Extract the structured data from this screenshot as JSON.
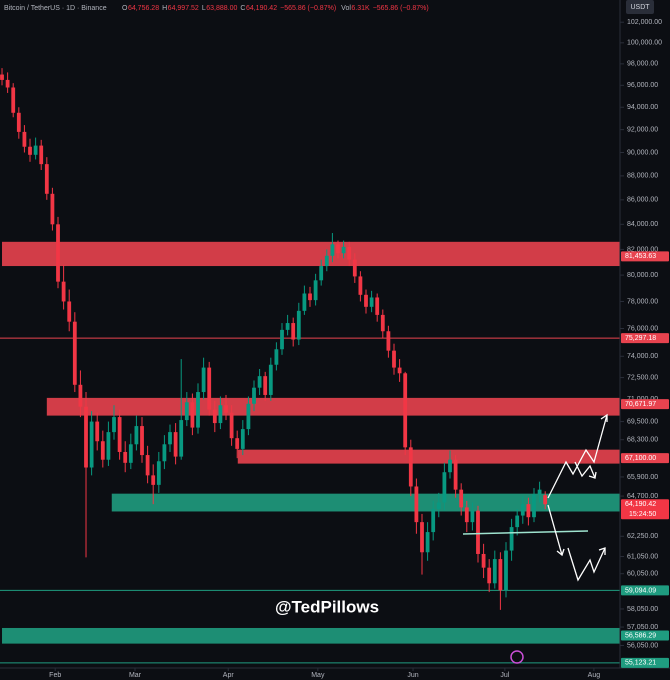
{
  "chart_data": {
    "type": "candlestick",
    "header": {
      "symbol": "Bitcoin / TetherUS · 1D · Binance",
      "ohlc": [
        "O",
        "64,756.28",
        "H",
        "64,997.52",
        "L",
        "63,888.00",
        "C",
        "64,190.42",
        "−565.86 (−0.87%)"
      ],
      "volume": [
        "Vol",
        "6.31K",
        "−565.86 (−0.87%)"
      ]
    },
    "currency": "USDT",
    "watermark": "@TedPillows",
    "log_scale": true,
    "grid": false,
    "up_color": "#089981",
    "down_color": "#f23645",
    "xlim": [
      -0.36,
      110.36
    ],
    "xticks": [
      {
        "value": 9.5,
        "label": "Feb"
      },
      {
        "value": 23.75,
        "label": "Mar"
      },
      {
        "value": 40.4,
        "label": "Apr"
      },
      {
        "value": 56.4,
        "label": "May"
      },
      {
        "value": 73.4,
        "label": "Jun"
      },
      {
        "value": 89.8,
        "label": "Jul"
      },
      {
        "value": 105.7,
        "label": "Aug"
      }
    ],
    "ylim": [
      54850,
      104200
    ],
    "yticks": [
      {
        "value": 102000,
        "label": "102,000.00"
      },
      {
        "value": 100000,
        "label": "100,000.00"
      },
      {
        "value": 98000,
        "label": "98,000.00"
      },
      {
        "value": 96000,
        "label": "96,000.00"
      },
      {
        "value": 94000,
        "label": "94,000.00"
      },
      {
        "value": 92000,
        "label": "92,000.00"
      },
      {
        "value": 90000,
        "label": "90,000.00"
      },
      {
        "value": 88000,
        "label": "88,000.00"
      },
      {
        "value": 86000,
        "label": "86,000.00"
      },
      {
        "value": 84000,
        "label": "84,000.00"
      },
      {
        "value": 82000,
        "label": "82,000.00"
      },
      {
        "value": 80000,
        "label": "80,000.00"
      },
      {
        "value": 78000,
        "label": "78,000.00"
      },
      {
        "value": 76000,
        "label": "76,000.00"
      },
      {
        "value": 74000,
        "label": "74,000.00"
      },
      {
        "value": 72500,
        "label": "72,500.00"
      },
      {
        "value": 71000,
        "label": "71,000.00"
      },
      {
        "value": 69500,
        "label": "69,500.00"
      },
      {
        "value": 68300,
        "label": "68,300.00"
      },
      {
        "value": 65900,
        "label": "65,900.00"
      },
      {
        "value": 64700,
        "label": "64,700.00"
      },
      {
        "value": 62250,
        "label": "62,250.00"
      },
      {
        "value": 61050,
        "label": "61,050.00"
      },
      {
        "value": 60050,
        "label": "60,050.00"
      },
      {
        "value": 58050,
        "label": "58,050.00"
      },
      {
        "value": 57050,
        "label": "57,050.00"
      },
      {
        "value": 56050,
        "label": "56,050.00"
      }
    ],
    "open": [
      97000,
      96500,
      95800,
      93500,
      91800,
      90500,
      89800,
      90600,
      89000,
      86500,
      84000,
      79500,
      78000,
      76500,
      72000,
      70500,
      66500,
      69500,
      68200,
      67000,
      68800,
      69800,
      67500,
      66800,
      68000,
      69200,
      67300,
      66000,
      65400,
      66900,
      68000,
      68800,
      67200,
      69600,
      70800,
      69100,
      71500,
      73200,
      70300,
      69400,
      70600,
      70100,
      68400,
      67700,
      69000,
      70700,
      71800,
      72600,
      71300,
      73400,
      74500,
      75900,
      76400,
      75200,
      77300,
      78600,
      78100,
      79600,
      80700,
      81500,
      82400,
      81700,
      82200,
      81200,
      79900,
      78500,
      77600,
      78300,
      77000,
      75800,
      74400,
      73200,
      72800,
      67800,
      65300,
      63100,
      61300,
      62500,
      63900,
      64300,
      66200,
      67000,
      65100,
      64000,
      63100,
      63800,
      61200,
      60400,
      59500,
      60900,
      59100,
      61400,
      62800,
      63500,
      64200,
      63400,
      64800,
      64756.28
    ],
    "high": [
      97600,
      97200,
      96200,
      94000,
      92400,
      91200,
      91300,
      91100,
      89600,
      87000,
      84600,
      80800,
      78900,
      77200,
      73000,
      71500,
      70200,
      70100,
      68900,
      69500,
      70600,
      70300,
      68200,
      68700,
      69900,
      69800,
      67900,
      66700,
      67500,
      68600,
      69300,
      69400,
      73800,
      71500,
      71400,
      72100,
      73900,
      73600,
      70900,
      71200,
      71300,
      70600,
      68900,
      69600,
      71200,
      72300,
      73100,
      72900,
      73900,
      75000,
      76400,
      77000,
      76800,
      77900,
      79200,
      79100,
      80100,
      81200,
      82000,
      83300,
      82700,
      82700,
      82600,
      81700,
      80300,
      78900,
      78800,
      78600,
      77400,
      76200,
      74900,
      73800,
      72900,
      68300,
      65800,
      63600,
      63100,
      64400,
      64900,
      66800,
      67600,
      67300,
      65500,
      64400,
      64300,
      64100,
      61800,
      60900,
      61400,
      61300,
      61900,
      63300,
      63900,
      64700,
      64600,
      65200,
      65600,
      64997.52
    ],
    "low": [
      96000,
      95300,
      93100,
      91200,
      90000,
      89200,
      89400,
      88500,
      86000,
      83500,
      79000,
      77400,
      75800,
      71500,
      69800,
      61000,
      66000,
      67600,
      66500,
      66600,
      68300,
      67000,
      66200,
      66400,
      67600,
      66800,
      65500,
      64200,
      64900,
      66400,
      67500,
      66700,
      67000,
      69200,
      68600,
      68700,
      71000,
      69900,
      68800,
      69000,
      69600,
      67900,
      67100,
      67300,
      68600,
      70200,
      71300,
      70900,
      70900,
      73000,
      74100,
      75500,
      74700,
      74800,
      77000,
      77600,
      77700,
      79200,
      80300,
      81000,
      81300,
      81300,
      80700,
      79400,
      78000,
      77100,
      77200,
      76500,
      75300,
      73900,
      72700,
      72200,
      67300,
      64700,
      62400,
      60000,
      60800,
      62000,
      63400,
      63800,
      65800,
      64600,
      63500,
      62500,
      62600,
      60700,
      59800,
      59000,
      59200,
      58000,
      58700,
      60800,
      62300,
      63000,
      62900,
      63100,
      64300,
      63888.0
    ],
    "close": [
      96500,
      95800,
      93500,
      91800,
      90500,
      89800,
      90600,
      89000,
      86500,
      84000,
      79500,
      78000,
      76500,
      72000,
      70500,
      66500,
      69500,
      68200,
      67000,
      68800,
      69800,
      67500,
      66800,
      68000,
      69200,
      67300,
      66000,
      65400,
      66900,
      68000,
      68800,
      67200,
      69600,
      70800,
      69100,
      71500,
      73200,
      70300,
      69400,
      70600,
      70100,
      68400,
      67700,
      69000,
      70700,
      71800,
      72600,
      71300,
      73400,
      74500,
      75900,
      76400,
      75200,
      77300,
      78600,
      78100,
      79600,
      80700,
      81500,
      82400,
      81700,
      82200,
      81200,
      79900,
      78500,
      77600,
      78300,
      77000,
      75800,
      74400,
      73200,
      72800,
      67800,
      65300,
      63100,
      61300,
      62500,
      63900,
      64300,
      66200,
      67000,
      65100,
      64000,
      63100,
      63800,
      61200,
      60400,
      59500,
      60900,
      59100,
      61400,
      62800,
      63500,
      64200,
      63400,
      64800,
      65100,
      64190.42
    ],
    "zones": [
      {
        "low": 80700,
        "high": 82600,
        "start": 0,
        "color": "#e8434f"
      },
      {
        "low": 69900,
        "high": 71100,
        "start": 8,
        "color": "#e8434f"
      },
      {
        "low": 66750,
        "high": 67650,
        "start": 42.1,
        "color": "#e8434f"
      },
      {
        "low": 63750,
        "high": 64850,
        "start": 19.6,
        "color": "#1f9c80"
      },
      {
        "low": 56150,
        "high": 57000,
        "start": 0,
        "color": "#1f9c80"
      }
    ],
    "lines": [
      {
        "value": 75297.18,
        "color": "#e8434f"
      },
      {
        "value": 59094.09,
        "color": "#1f9c80"
      },
      {
        "value": 55123.21,
        "color": "#1f9c80"
      }
    ],
    "price_labels": [
      {
        "value": 81453.63,
        "label": "81,453.63",
        "color": "#e8434f"
      },
      {
        "value": 75297.18,
        "label": "75,297.18",
        "color": "#e8434f"
      },
      {
        "value": 70671.97,
        "label": "70,671.97",
        "color": "#e8434f"
      },
      {
        "value": 67100,
        "label": "67,100.00",
        "color": "#e8434f"
      },
      {
        "value": 64190.42,
        "label": "64,190.42",
        "color": "#f23645"
      },
      {
        "value": 59094.09,
        "label": "59,094.09",
        "color": "#1f9c80"
      },
      {
        "value": 56586.29,
        "label": "56,586.29",
        "color": "#1f9c80"
      },
      {
        "value": 55123.21,
        "label": "55,123.21",
        "color": "#1f9c80"
      }
    ],
    "countdown": "15:24:50"
  }
}
